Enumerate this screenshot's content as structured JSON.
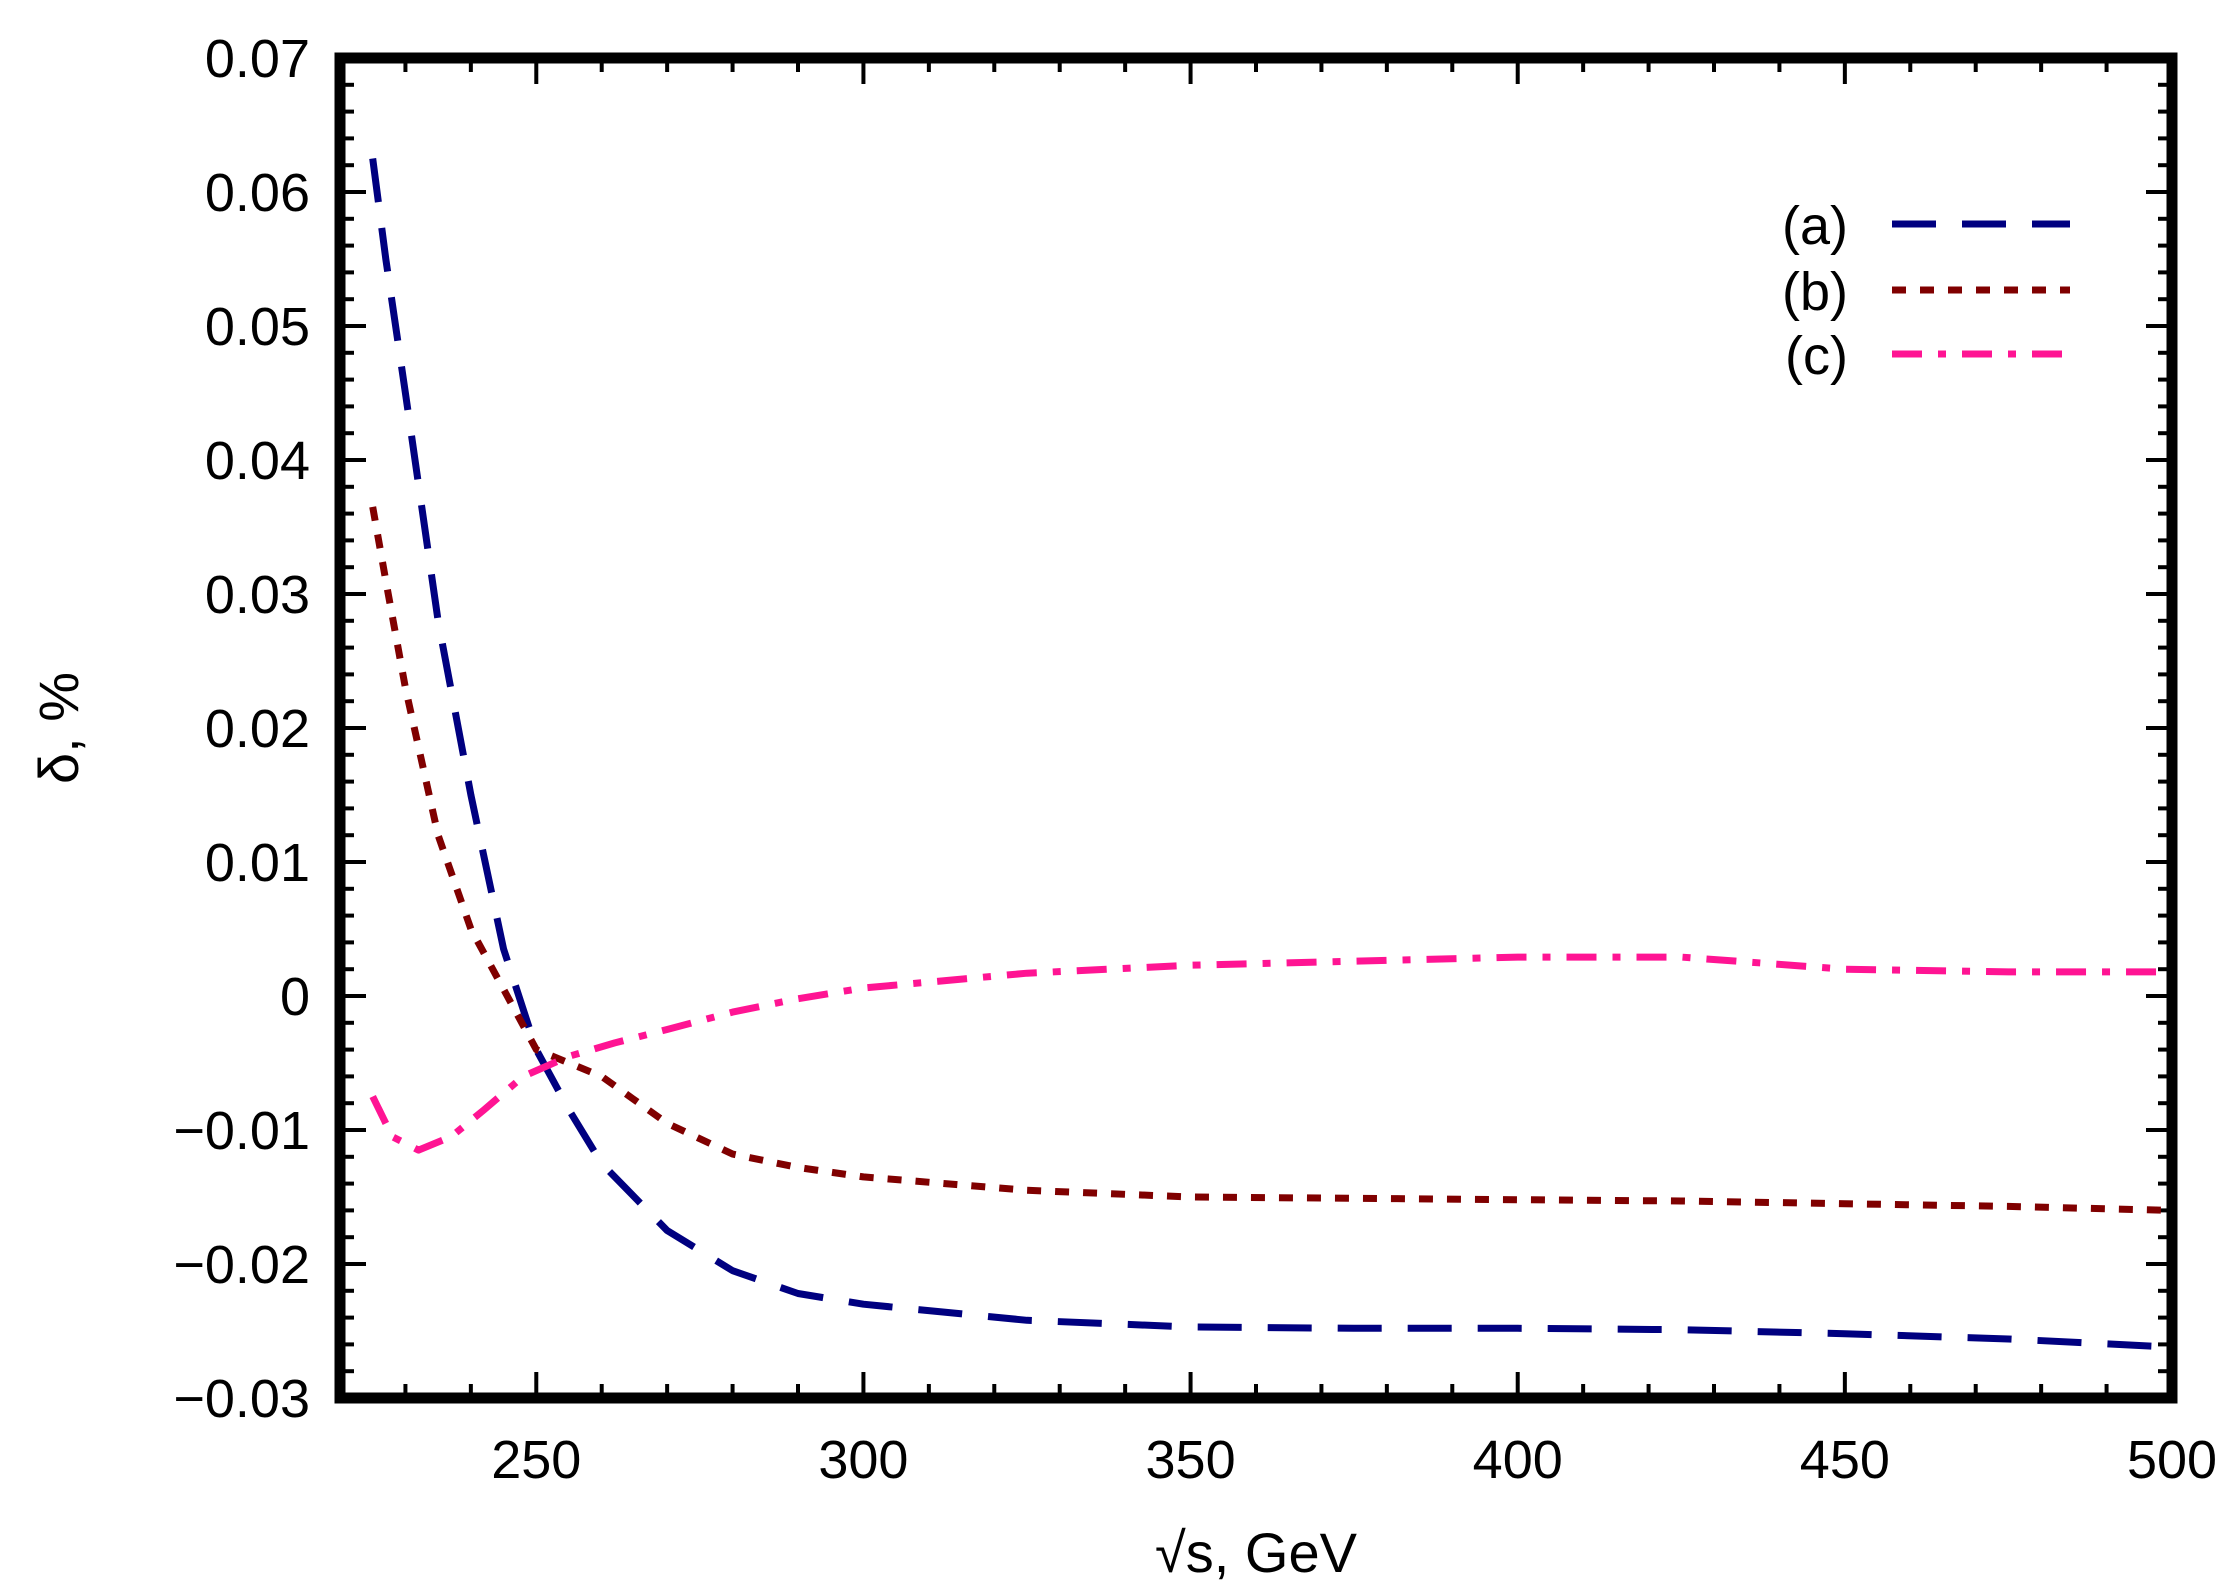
{
  "chart_data": {
    "type": "line",
    "title": "",
    "xlabel": "√s, GeV",
    "ylabel": "δ, %",
    "xlim": [
      220,
      500
    ],
    "ylim": [
      -0.03,
      0.07
    ],
    "grid": false,
    "legend_position": "top-right",
    "x_ticks": [
      {
        "value": 250,
        "label": "250"
      },
      {
        "value": 300,
        "label": "300"
      },
      {
        "value": 350,
        "label": "350"
      },
      {
        "value": 400,
        "label": "400"
      },
      {
        "value": 450,
        "label": "450"
      },
      {
        "value": 500,
        "label": "500"
      }
    ],
    "y_ticks": [
      {
        "value": 0.07,
        "label": "0.07"
      },
      {
        "value": 0.06,
        "label": "0.06"
      },
      {
        "value": 0.05,
        "label": "0.05"
      },
      {
        "value": 0.04,
        "label": "0.04"
      },
      {
        "value": 0.03,
        "label": "0.03"
      },
      {
        "value": 0.02,
        "label": "0.02"
      },
      {
        "value": 0.01,
        "label": "0.01"
      },
      {
        "value": 0,
        "label": "0"
      },
      {
        "value": -0.01,
        "label": "−0.01"
      },
      {
        "value": -0.02,
        "label": "−0.02"
      },
      {
        "value": -0.03,
        "label": "−0.03"
      }
    ],
    "series": [
      {
        "name": "(a)",
        "color": "#000080",
        "style": "long-dash",
        "x": [
          225,
          227,
          230,
          235,
          240,
          245,
          250,
          255,
          260,
          270,
          280,
          290,
          300,
          325,
          350,
          375,
          400,
          425,
          450,
          475,
          500
        ],
        "y": [
          0.0625,
          0.055,
          0.045,
          0.028,
          0.015,
          0.0035,
          -0.004,
          -0.0085,
          -0.0125,
          -0.0175,
          -0.0205,
          -0.0222,
          -0.023,
          -0.0242,
          -0.0247,
          -0.0248,
          -0.0248,
          -0.0249,
          -0.0252,
          -0.0256,
          -0.0262
        ]
      },
      {
        "name": "(b)",
        "color": "#800000",
        "style": "short-dash",
        "x": [
          225,
          227,
          230,
          235,
          240,
          245,
          250,
          255,
          260,
          270,
          280,
          290,
          300,
          325,
          350,
          375,
          400,
          425,
          450,
          475,
          500
        ],
        "y": [
          0.0365,
          0.031,
          0.023,
          0.012,
          0.005,
          0.0005,
          -0.004,
          -0.005,
          -0.006,
          -0.0095,
          -0.0118,
          -0.0128,
          -0.0135,
          -0.0145,
          -0.015,
          -0.0151,
          -0.0152,
          -0.0153,
          -0.0155,
          -0.0157,
          -0.016
        ]
      },
      {
        "name": "(c)",
        "color": "#FF1493",
        "style": "dash-dot",
        "x": [
          225,
          228,
          232,
          237,
          242,
          248,
          255,
          262,
          270,
          280,
          290,
          300,
          325,
          350,
          375,
          400,
          425,
          450,
          475,
          500
        ],
        "y": [
          -0.0075,
          -0.0105,
          -0.0115,
          -0.0105,
          -0.0085,
          -0.006,
          -0.0045,
          -0.0035,
          -0.0025,
          -0.0012,
          -0.0002,
          0.0006,
          0.0017,
          0.0023,
          0.0026,
          0.0029,
          0.0029,
          0.002,
          0.0018,
          0.0018
        ]
      }
    ]
  }
}
